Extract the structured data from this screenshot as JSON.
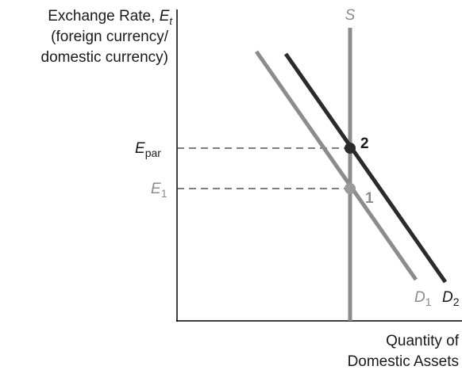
{
  "y_axis": {
    "line1_main": "Exchange Rate, ",
    "line1_symbol": "E",
    "line1_sub": "t",
    "line2": "(foreign currency/",
    "line3": "domestic currency)"
  },
  "x_axis": {
    "line1": "Quantity of",
    "line2": "Domestic Assets"
  },
  "supply": {
    "label": "S"
  },
  "demand": [
    {
      "symbol": "D",
      "sub": "1"
    },
    {
      "symbol": "D",
      "sub": "2"
    }
  ],
  "levels": {
    "epar": {
      "symbol": "E",
      "sub": "par"
    },
    "e1": {
      "symbol": "E",
      "sub": "1"
    }
  },
  "points": {
    "point1": "1",
    "point2": "2"
  },
  "colors": {
    "axis": "#000000",
    "supply": "#8c8c8c",
    "d1": "#8c8c8c",
    "d2": "#2b2b2b",
    "point1": "#9a9a9a",
    "point2": "#2b2b2b",
    "guides": "#333333",
    "e1_label": "#8c8c8c",
    "text": "#1a1a1a"
  }
}
